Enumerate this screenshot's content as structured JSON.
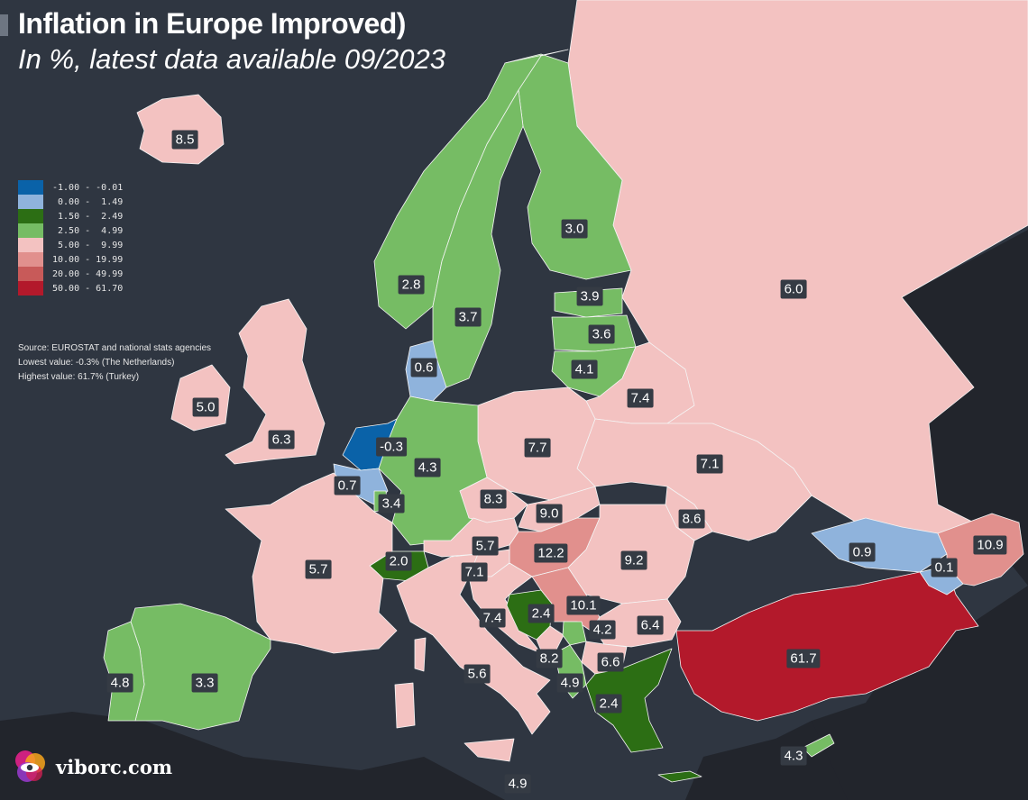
{
  "title": "Inflation in Europe Improved)",
  "subtitle": "In %, latest data available 09/2023",
  "legend": [
    {
      "label": "-1.00 - -0.01",
      "color": "#0a62a8"
    },
    {
      "label": " 0.00 -  1.49",
      "color": "#8fb3dc"
    },
    {
      "label": " 1.50 -  2.49",
      "color": "#2c6e14"
    },
    {
      "label": " 2.50 -  4.99",
      "color": "#76bc64"
    },
    {
      "label": " 5.00 -  9.99",
      "color": "#f3c2c1"
    },
    {
      "label": "10.00 - 19.99",
      "color": "#e1908d"
    },
    {
      "label": "20.00 - 49.99",
      "color": "#c85a59"
    },
    {
      "label": "50.00 - 61.70",
      "color": "#b3192b"
    }
  ],
  "notes": {
    "source": "Source: EUROSTAT and national stats agencies",
    "lowest": "Lowest value: -0.3% (The Netherlands)",
    "highest": "Highest value: 61.7% (Turkey)"
  },
  "colors": {
    "sea": "#2f3641",
    "outside": "#22252c",
    "border": "#f5f5f5"
  },
  "countries": [
    {
      "name": "Iceland",
      "value": "8.5",
      "color": "#f3c2c1"
    },
    {
      "name": "Norway",
      "value": "2.8",
      "color": "#76bc64"
    },
    {
      "name": "Sweden",
      "value": "3.7",
      "color": "#76bc64"
    },
    {
      "name": "Finland",
      "value": "3.0",
      "color": "#76bc64"
    },
    {
      "name": "Estonia",
      "value": "3.9",
      "color": "#76bc64"
    },
    {
      "name": "Latvia",
      "value": "3.6",
      "color": "#76bc64"
    },
    {
      "name": "Lithuania",
      "value": "4.1",
      "color": "#76bc64"
    },
    {
      "name": "Russia",
      "value": "6.0",
      "color": "#f3c2c1"
    },
    {
      "name": "Denmark",
      "value": "0.6",
      "color": "#8fb3dc"
    },
    {
      "name": "Ireland",
      "value": "5.0",
      "color": "#f3c2c1"
    },
    {
      "name": "United Kingdom",
      "value": "6.3",
      "color": "#f3c2c1"
    },
    {
      "name": "Netherlands",
      "value": "-0.3",
      "color": "#0a62a8"
    },
    {
      "name": "Belgium",
      "value": "0.7",
      "color": "#8fb3dc"
    },
    {
      "name": "Luxembourg",
      "value": "3.4",
      "color": "#76bc64"
    },
    {
      "name": "Germany",
      "value": "4.3",
      "color": "#76bc64"
    },
    {
      "name": "Poland",
      "value": "7.7",
      "color": "#f3c2c1"
    },
    {
      "name": "Belarus",
      "value": "7.4",
      "color": "#f3c2c1"
    },
    {
      "name": "Ukraine",
      "value": "7.1",
      "color": "#f3c2c1"
    },
    {
      "name": "Czechia",
      "value": "8.3",
      "color": "#f3c2c1"
    },
    {
      "name": "Slovakia",
      "value": "9.0",
      "color": "#f3c2c1"
    },
    {
      "name": "Moldova",
      "value": "8.6",
      "color": "#f3c2c1"
    },
    {
      "name": "Austria",
      "value": "5.7",
      "color": "#f3c2c1"
    },
    {
      "name": "Hungary",
      "value": "12.2",
      "color": "#e1908d"
    },
    {
      "name": "Romania",
      "value": "9.2",
      "color": "#f3c2c1"
    },
    {
      "name": "France",
      "value": "5.7",
      "color": "#f3c2c1"
    },
    {
      "name": "Switzerland",
      "value": "2.0",
      "color": "#2c6e14"
    },
    {
      "name": "Slovenia",
      "value": "7.1",
      "color": "#f3c2c1"
    },
    {
      "name": "Croatia",
      "value": "7.4",
      "color": "#f3c2c1"
    },
    {
      "name": "Bosnia and Herzegovina",
      "value": "2.4",
      "color": "#2c6e14"
    },
    {
      "name": "Serbia",
      "value": "10.1",
      "color": "#e1908d"
    },
    {
      "name": "Kosovo",
      "value": "4.2",
      "color": "#76bc64"
    },
    {
      "name": "Bulgaria",
      "value": "6.4",
      "color": "#f3c2c1"
    },
    {
      "name": "Montenegro",
      "value": "8.2",
      "color": "#f3c2c1"
    },
    {
      "name": "Albania",
      "value": "4.9",
      "color": "#76bc64"
    },
    {
      "name": "North Macedonia",
      "value": "6.6",
      "color": "#f3c2c1"
    },
    {
      "name": "Greece",
      "value": "2.4",
      "color": "#2c6e14"
    },
    {
      "name": "Italy",
      "value": "5.6",
      "color": "#f3c2c1"
    },
    {
      "name": "Malta",
      "value": "4.9",
      "color": "#76bc64"
    },
    {
      "name": "Spain",
      "value": "3.3",
      "color": "#76bc64"
    },
    {
      "name": "Portugal",
      "value": "4.8",
      "color": "#76bc64"
    },
    {
      "name": "Turkey",
      "value": "61.7",
      "color": "#b3192b"
    },
    {
      "name": "Georgia",
      "value": "0.9",
      "color": "#8fb3dc"
    },
    {
      "name": "Armenia",
      "value": "0.1",
      "color": "#8fb3dc"
    },
    {
      "name": "Azerbaijan",
      "value": "10.9",
      "color": "#e1908d"
    },
    {
      "name": "Cyprus",
      "value": "4.3",
      "color": "#76bc64"
    }
  ],
  "brand": "viborc.com"
}
